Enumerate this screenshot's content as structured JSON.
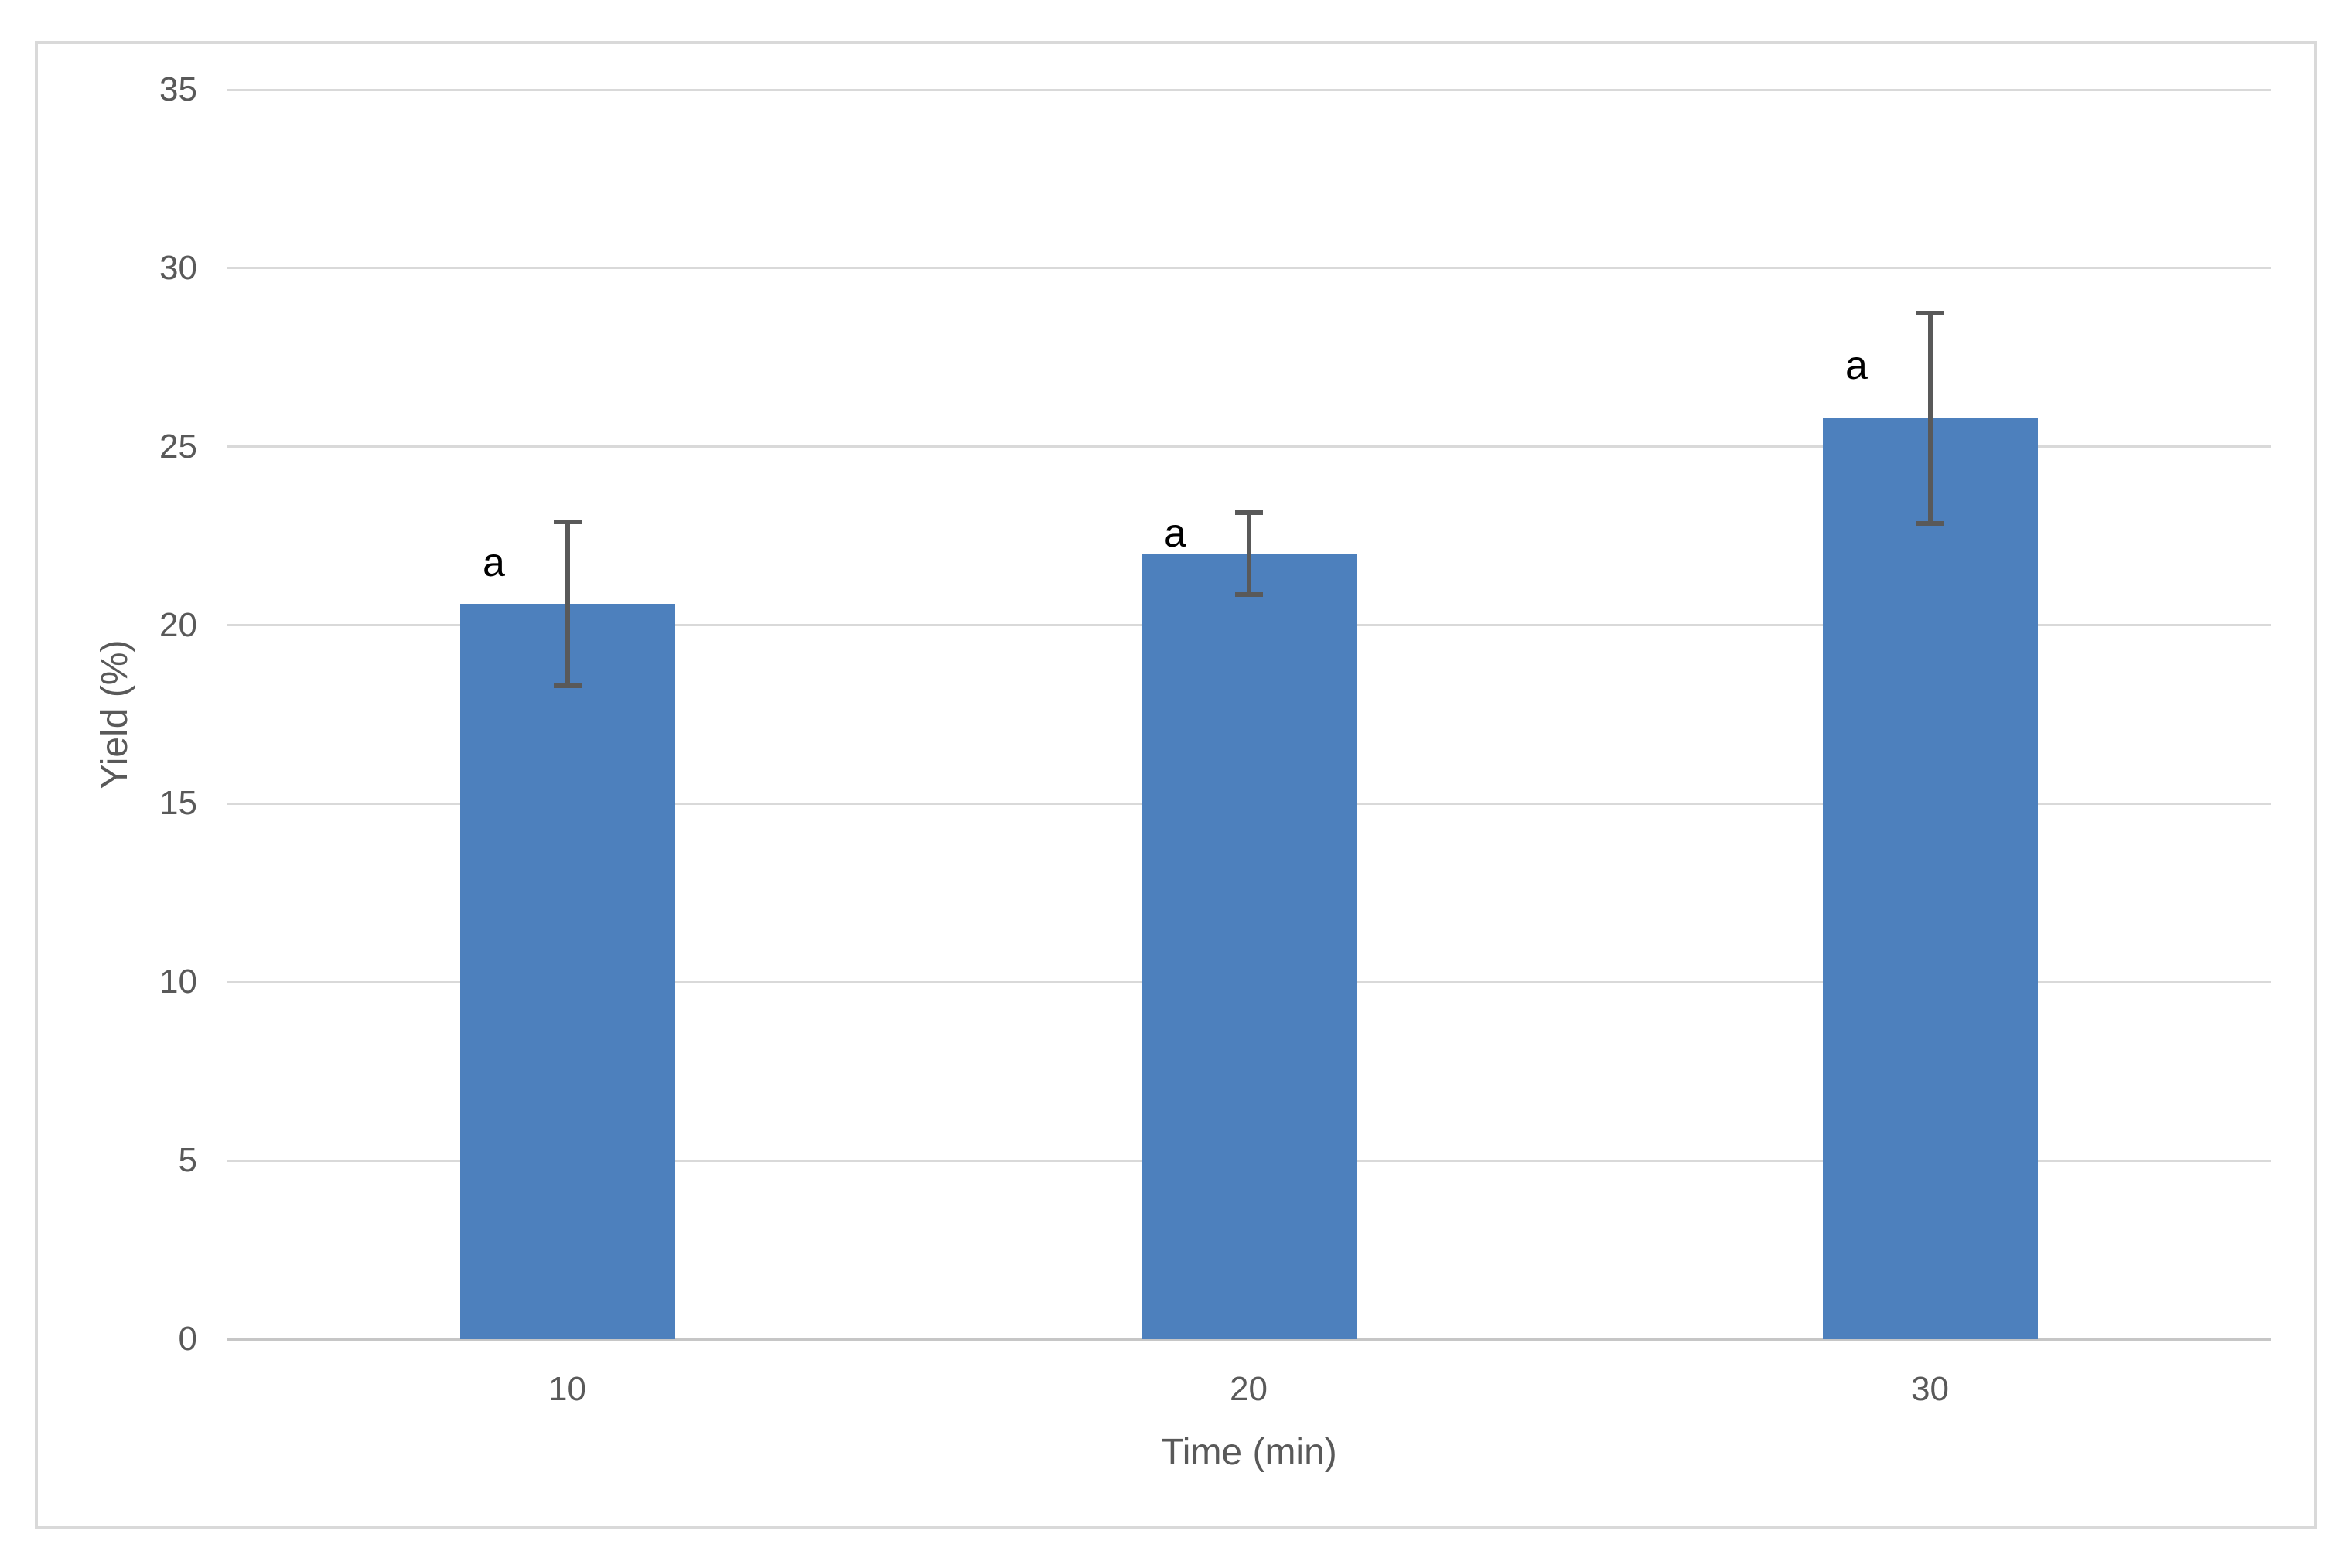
{
  "chart_data": {
    "type": "bar",
    "title": "",
    "categories": [
      "10",
      "20",
      "30"
    ],
    "values": [
      20.6,
      22.0,
      25.8
    ],
    "errors": [
      2.3,
      1.15,
      2.95
    ],
    "bar_letters": [
      "a",
      "a",
      "a"
    ],
    "xlabel": "Time (min)",
    "ylabel": "Yield (%)",
    "ylim": [
      0,
      35
    ],
    "yticks": [
      0,
      5,
      10,
      15,
      20,
      25,
      30,
      35
    ],
    "grid": true,
    "legend": false,
    "colors": {
      "bar": "#4d80bd",
      "gridline": "#d9d9d9",
      "axis_line": "#c6c6c6",
      "error_bar": "#595959",
      "tick_text": "#595959",
      "letter_text": "#000000",
      "frame_border": "#d9d9d9",
      "background": "#ffffff"
    }
  }
}
